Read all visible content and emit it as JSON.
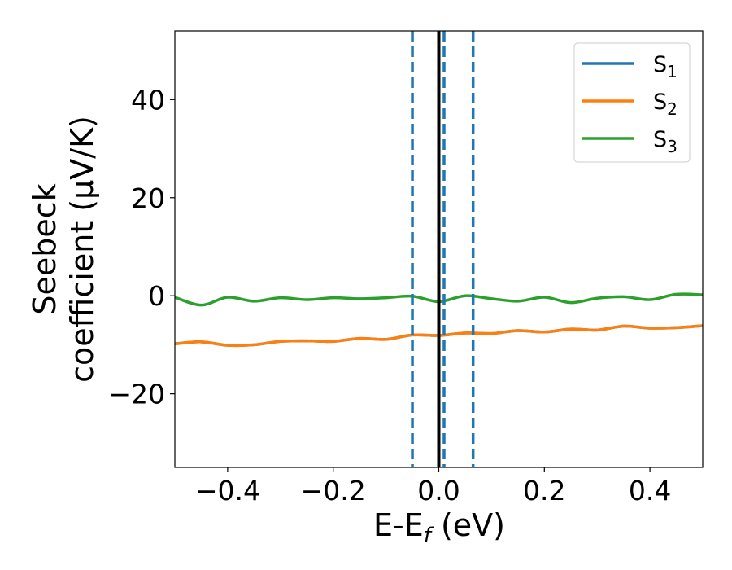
{
  "chart_data": {
    "type": "line",
    "xlabel": {
      "main": "E-E",
      "sub": "f",
      "rest": " (eV)"
    },
    "ylabel": {
      "line1": "Seebeck",
      "line2": "coefficient  (μV/K)"
    },
    "xlim": [
      -0.5,
      0.5
    ],
    "ylim": [
      -35,
      54
    ],
    "xticks": [
      -0.4,
      -0.2,
      0.0,
      0.2,
      0.4
    ],
    "xtick_labels": [
      "−0.4",
      "−0.2",
      "0.0",
      "0.2",
      "0.4"
    ],
    "yticks": [
      -20,
      0,
      20,
      40
    ],
    "ytick_labels": [
      "−20",
      "0",
      "20",
      "40"
    ],
    "grid": false,
    "legend_position": "top-right",
    "vlines": [
      {
        "x": 0.0,
        "style": "solid",
        "color": "#000000"
      },
      {
        "x": -0.05,
        "style": "dashed",
        "color": "#1f77b4"
      },
      {
        "x": 0.01,
        "style": "dashed",
        "color": "#1f77b4"
      },
      {
        "x": 0.065,
        "style": "dashed",
        "color": "#1f77b4"
      }
    ],
    "x": [
      -0.5,
      -0.45,
      -0.4,
      -0.35,
      -0.3,
      -0.25,
      -0.2,
      -0.15,
      -0.1,
      -0.05,
      0.0,
      0.05,
      0.1,
      0.15,
      0.2,
      0.25,
      0.3,
      0.35,
      0.4,
      0.45,
      0.5
    ],
    "series": [
      {
        "name": "S",
        "sub": "1",
        "color": "#1f77b4",
        "values": [
          -9.8,
          -9.4,
          -10.1,
          -10.0,
          -9.3,
          -9.2,
          -9.3,
          -8.7,
          -8.9,
          -8.0,
          -8.1,
          -7.6,
          -7.7,
          -7.1,
          -7.4,
          -6.8,
          -7.0,
          -6.2,
          -6.6,
          -6.5,
          -6.1
        ]
      },
      {
        "name": "S",
        "sub": "2",
        "color": "#ff7f0e",
        "values": [
          -9.8,
          -9.4,
          -10.1,
          -10.0,
          -9.3,
          -9.2,
          -9.3,
          -8.7,
          -8.9,
          -8.0,
          -8.1,
          -7.6,
          -7.7,
          -7.1,
          -7.4,
          -6.8,
          -7.0,
          -6.2,
          -6.6,
          -6.5,
          -6.1
        ]
      },
      {
        "name": "S",
        "sub": "3",
        "color": "#2ca02c",
        "values": [
          -0.3,
          -1.9,
          -0.3,
          -1.1,
          -0.4,
          -0.8,
          -0.4,
          -0.6,
          -0.4,
          -0.1,
          -1.2,
          0.0,
          -0.6,
          -1.1,
          -0.3,
          -1.4,
          -0.5,
          -0.2,
          -0.8,
          0.3,
          0.2
        ]
      }
    ]
  }
}
